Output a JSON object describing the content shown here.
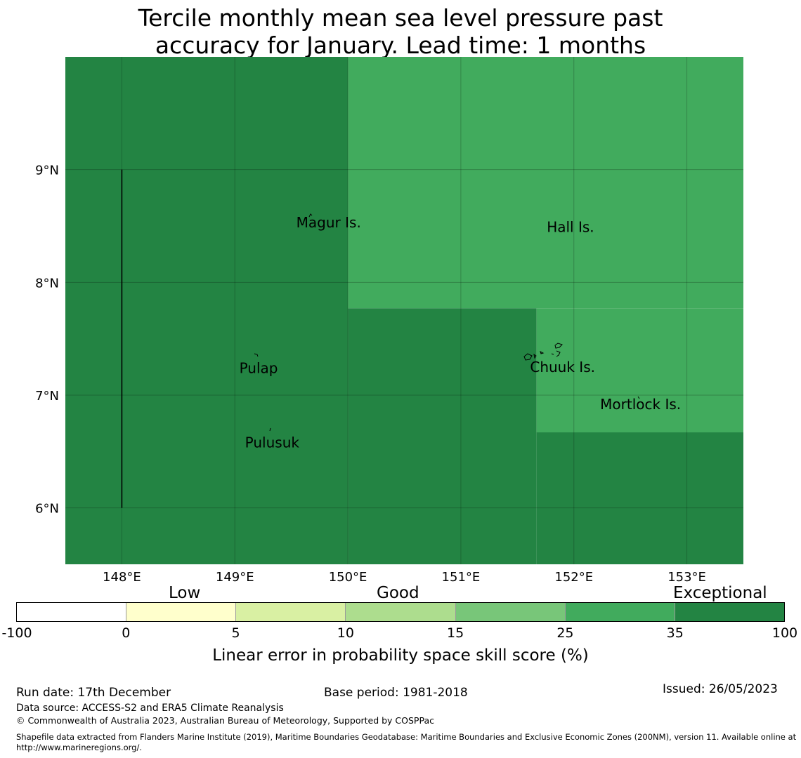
{
  "title": {
    "line1": "Tercile monthly mean sea level pressure past",
    "line2": "accuracy for January. Lead time: 1 months"
  },
  "map": {
    "lat_labels": [
      "9°N",
      "8°N",
      "7°N",
      "6°N"
    ],
    "lon_labels": [
      "148°E",
      "149°E",
      "150°E",
      "151°E",
      "152°E",
      "153°E"
    ],
    "lon_range": [
      147.5,
      153.5
    ],
    "lat_range": [
      5.5,
      10.0
    ],
    "cell_colors": {
      "exceptional": "#238443",
      "good_high": "#41ab5d"
    },
    "regions": [
      {
        "category": "exceptional",
        "lon": [
          147.5,
          150.0
        ],
        "lat": [
          5.5,
          10.0
        ]
      },
      {
        "category": "good_high",
        "lon": [
          150.0,
          153.5
        ],
        "lat": [
          7.77,
          10.0
        ]
      },
      {
        "category": "exceptional",
        "lon": [
          150.0,
          151.67
        ],
        "lat": [
          5.5,
          7.77
        ]
      },
      {
        "category": "good_high",
        "lon": [
          151.67,
          153.5
        ],
        "lat": [
          6.67,
          7.77
        ]
      },
      {
        "category": "exceptional",
        "lon": [
          151.67,
          153.5
        ],
        "lat": [
          5.5,
          6.67
        ]
      }
    ],
    "boundary_line": {
      "lon": 148.0,
      "lat": [
        6.0,
        9.0
      ]
    },
    "places": [
      {
        "name": "Magur Is.",
        "lon": 149.83,
        "lat": 8.53
      },
      {
        "name": "Hall Is.",
        "lon": 151.97,
        "lat": 8.49
      },
      {
        "name": "Pulap",
        "lon": 149.21,
        "lat": 7.24
      },
      {
        "name": "Chuuk Is.",
        "lon": 151.9,
        "lat": 7.25
      },
      {
        "name": "Mortlock Is.",
        "lon": 152.59,
        "lat": 6.92
      },
      {
        "name": "Pulusuk",
        "lon": 149.33,
        "lat": 6.58
      }
    ]
  },
  "legend": {
    "categories": [
      "Low",
      "Good",
      "Exceptional"
    ],
    "colors": [
      "#ffffff",
      "#ffffcc",
      "#d9f0a3",
      "#addd8e",
      "#78c679",
      "#41ab5d",
      "#238443"
    ],
    "ticks": [
      "-100",
      "0",
      "5",
      "10",
      "15",
      "25",
      "35",
      "100"
    ],
    "label": "Linear error in probability space skill score (%)"
  },
  "footer": {
    "run_date": "Run date: 17th December",
    "base_period": "Base period: 1981-2018",
    "issued": "Issued: 26/05/2023",
    "data_source": "Data source: ACCESS-S2 and ERA5 Climate Reanalysis",
    "copyright": "© Commonwealth of Australia 2023, Australian Bureau of Meteorology, Supported by COSPPac",
    "shapefile": "Shapefile data extracted from Flanders Marine Institute (2019), Maritime Boundaries Geodatabase: Maritime Boundaries and Exclusive Economic Zones (200NM), version 11. Available online at http://www.marineregions.org/."
  }
}
